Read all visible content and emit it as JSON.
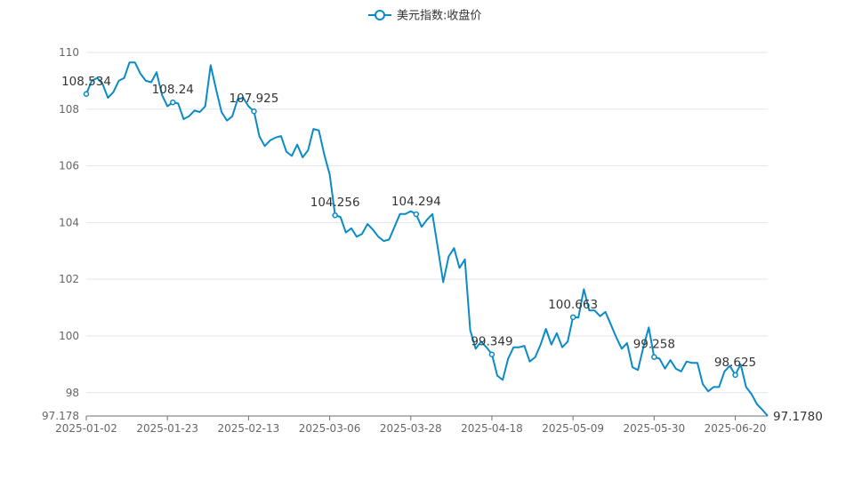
{
  "chart_data": {
    "type": "line",
    "legend": {
      "name": "美元指数:收盘价",
      "position": "top-center"
    },
    "color": "#0a8bc7",
    "ylim": [
      97.178,
      110
    ],
    "y_ticks": [
      98,
      100,
      102,
      104,
      106,
      108,
      110
    ],
    "y_min_label": "97.178",
    "x_ticks": [
      "2025-01-02",
      "2025-01-23",
      "2025-02-13",
      "2025-03-06",
      "2025-03-28",
      "2025-04-18",
      "2025-05-09",
      "2025-05-30",
      "2025-06-20"
    ],
    "x_tick_indices": [
      0,
      15,
      30,
      45,
      60,
      75,
      90,
      105,
      120
    ],
    "grid": true,
    "series": [
      {
        "values": [
          108.534,
          109.0,
          109.1,
          108.9,
          108.4,
          108.6,
          109.0,
          109.1,
          109.65,
          109.65,
          109.25,
          109.0,
          108.95,
          109.3,
          108.5,
          108.1,
          108.24,
          108.2,
          107.65,
          107.75,
          107.95,
          107.9,
          108.1,
          109.55,
          108.7,
          107.9,
          107.6,
          107.75,
          108.35,
          108.4,
          108.1,
          107.925,
          107.05,
          106.7,
          106.9,
          107.0,
          107.05,
          106.5,
          106.35,
          106.75,
          106.3,
          106.55,
          107.3,
          107.25,
          106.4,
          105.7,
          104.256,
          104.2,
          103.65,
          103.8,
          103.5,
          103.6,
          103.95,
          103.75,
          103.5,
          103.35,
          103.4,
          103.85,
          104.3,
          104.3,
          104.4,
          104.294,
          103.85,
          104.1,
          104.3,
          103.1,
          101.9,
          102.8,
          103.1,
          102.4,
          102.7,
          100.2,
          99.55,
          99.8,
          99.6,
          99.349,
          98.6,
          98.45,
          99.2,
          99.6,
          99.6,
          99.65,
          99.1,
          99.25,
          99.7,
          100.25,
          99.7,
          100.1,
          99.6,
          99.8,
          100.663,
          100.65,
          101.65,
          100.9,
          100.9,
          100.7,
          100.85,
          100.4,
          99.95,
          99.55,
          99.75,
          98.9,
          98.8,
          99.6,
          100.3,
          99.258,
          99.2,
          98.85,
          99.15,
          98.85,
          98.75,
          99.1,
          99.05,
          99.05,
          98.3,
          98.05,
          98.2,
          98.2,
          98.75,
          98.95,
          98.625,
          99.0,
          98.2,
          97.95,
          97.6,
          97.4,
          97.178
        ],
        "markers": [
          {
            "index": 0,
            "label": "108.534"
          },
          {
            "index": 16,
            "label": "108.24"
          },
          {
            "index": 31,
            "label": "107.925"
          },
          {
            "index": 46,
            "label": "104.256"
          },
          {
            "index": 61,
            "label": "104.294"
          },
          {
            "index": 75,
            "label": "99.349"
          },
          {
            "index": 90,
            "label": "100.663"
          },
          {
            "index": 105,
            "label": "99.258"
          },
          {
            "index": 120,
            "label": "98.625"
          }
        ],
        "end_label": "97.1780"
      }
    ]
  }
}
